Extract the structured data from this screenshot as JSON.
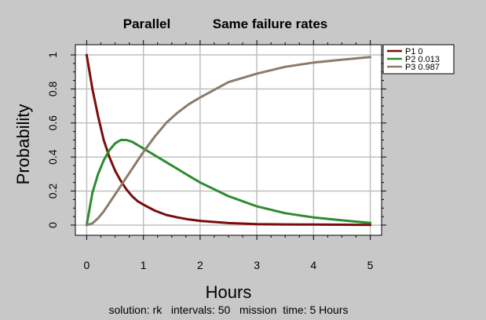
{
  "chart_data": {
    "type": "line",
    "title": "Parallel",
    "subtitle": "Same failure rates",
    "xlabel": "Hours",
    "ylabel": "Probability",
    "footer": "solution: rk   intervals: 50   mission  time: 5 Hours",
    "xlim": [
      -0.2,
      5.2
    ],
    "ylim": [
      -0.06,
      1.06
    ],
    "x_ticks": [
      0,
      1,
      2,
      3,
      4,
      5
    ],
    "y_ticks": [
      0,
      0.2,
      0.4,
      0.6,
      0.8,
      1
    ],
    "grid": true,
    "legend_position": "top-right outside",
    "series": [
      {
        "name": "P1 0",
        "color": "#7b0c0c",
        "x": [
          0,
          0.1,
          0.2,
          0.3,
          0.4,
          0.5,
          0.6,
          0.7,
          0.8,
          0.9,
          1.0,
          1.2,
          1.4,
          1.6,
          1.8,
          2.0,
          2.5,
          3.0,
          3.5,
          4.0,
          4.5,
          5.0
        ],
        "values": [
          1.0,
          0.8,
          0.64,
          0.5,
          0.4,
          0.32,
          0.26,
          0.21,
          0.17,
          0.14,
          0.12,
          0.085,
          0.06,
          0.045,
          0.033,
          0.025,
          0.012,
          0.006,
          0.004,
          0.003,
          0.002,
          0.001
        ]
      },
      {
        "name": "P2 0.013",
        "color": "#2e8b2e",
        "x": [
          0,
          0.1,
          0.2,
          0.3,
          0.4,
          0.5,
          0.6,
          0.7,
          0.8,
          0.9,
          1.0,
          1.2,
          1.4,
          1.6,
          1.8,
          2.0,
          2.5,
          3.0,
          3.5,
          4.0,
          4.5,
          5.0
        ],
        "values": [
          0.0,
          0.19,
          0.3,
          0.38,
          0.44,
          0.48,
          0.5,
          0.5,
          0.49,
          0.47,
          0.45,
          0.41,
          0.37,
          0.33,
          0.29,
          0.25,
          0.17,
          0.11,
          0.07,
          0.045,
          0.028,
          0.013
        ]
      },
      {
        "name": "P3 0.987",
        "color": "#8b7b6b",
        "x": [
          0,
          0.1,
          0.2,
          0.3,
          0.4,
          0.5,
          0.6,
          0.7,
          0.8,
          0.9,
          1.0,
          1.2,
          1.4,
          1.6,
          1.8,
          2.0,
          2.5,
          3.0,
          3.5,
          4.0,
          4.5,
          5.0
        ],
        "values": [
          0.0,
          0.01,
          0.04,
          0.08,
          0.13,
          0.18,
          0.23,
          0.28,
          0.33,
          0.38,
          0.43,
          0.52,
          0.6,
          0.66,
          0.71,
          0.75,
          0.84,
          0.89,
          0.93,
          0.955,
          0.972,
          0.987
        ]
      }
    ]
  }
}
